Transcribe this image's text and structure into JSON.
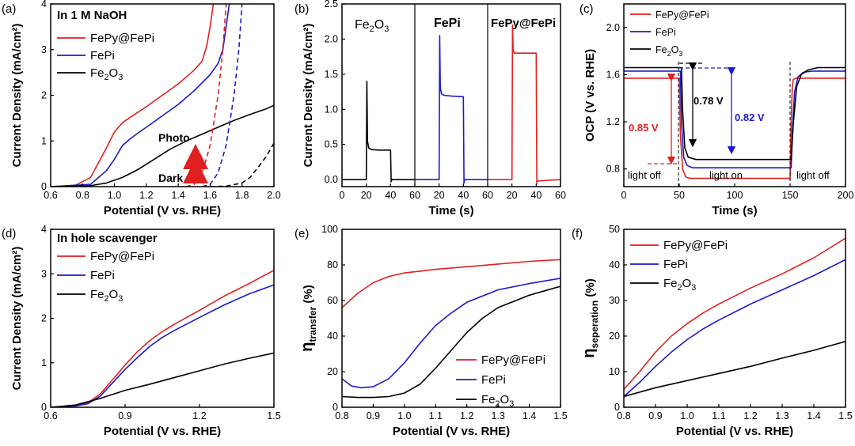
{
  "chart_data": [
    {
      "id": "a",
      "type": "line",
      "panel_label": "(a)",
      "title": "In 1 M NaOH",
      "xlabel": "Potential (V vs. RHE)",
      "ylabel": "Current Density (mA/cm²)",
      "xlim": [
        0.6,
        2.0
      ],
      "ylim": [
        0,
        4
      ],
      "xticks": [
        "0.6",
        "0.8",
        "1.0",
        "1.2",
        "1.4",
        "1.6",
        "1.8",
        "2.0"
      ],
      "yticks": [
        "0",
        "1",
        "2",
        "3",
        "4"
      ],
      "legend": [
        "FePy@FePi",
        "FePi",
        "Fe₂O₃"
      ],
      "annotations": [
        "Photo",
        "Dark"
      ],
      "series": [
        {
          "name": "FePy@FePi",
          "color": "#e02020",
          "dash": false,
          "x": [
            0.6,
            0.75,
            0.85,
            0.95,
            1.0,
            1.05,
            1.1,
            1.2,
            1.3,
            1.4,
            1.5,
            1.55,
            1.58,
            1.6,
            1.62
          ],
          "y": [
            0,
            0.02,
            0.2,
            0.85,
            1.2,
            1.4,
            1.52,
            1.75,
            2.0,
            2.25,
            2.55,
            2.75,
            3.1,
            3.5,
            4.0
          ]
        },
        {
          "name": "FePi",
          "color": "#1a1acc",
          "dash": false,
          "x": [
            0.6,
            0.85,
            0.95,
            1.0,
            1.05,
            1.1,
            1.15,
            1.2,
            1.3,
            1.4,
            1.5,
            1.6,
            1.65,
            1.68,
            1.7,
            1.72
          ],
          "y": [
            0,
            0.05,
            0.35,
            0.6,
            0.9,
            1.05,
            1.18,
            1.3,
            1.55,
            1.8,
            2.1,
            2.45,
            2.7,
            3.0,
            3.5,
            4.0
          ]
        },
        {
          "name": "Fe₂O₃",
          "color": "#000000",
          "dash": false,
          "x": [
            0.6,
            0.85,
            0.95,
            1.05,
            1.15,
            1.25,
            1.35,
            1.45,
            1.55,
            1.65,
            1.75,
            1.85,
            1.95,
            2.0
          ],
          "y": [
            0,
            0.02,
            0.08,
            0.2,
            0.38,
            0.6,
            0.82,
            1.0,
            1.15,
            1.3,
            1.45,
            1.58,
            1.7,
            1.78
          ]
        },
        {
          "name": "FePy@FePi dark",
          "color": "#e02020",
          "dash": true,
          "x": [
            1.45,
            1.5,
            1.55,
            1.6,
            1.65,
            1.68,
            1.7
          ],
          "y": [
            0,
            0.05,
            0.3,
            0.9,
            2.0,
            3.0,
            4.0
          ]
        },
        {
          "name": "FePi dark",
          "color": "#1a1acc",
          "dash": true,
          "x": [
            1.55,
            1.6,
            1.65,
            1.7,
            1.75,
            1.78,
            1.8
          ],
          "y": [
            0,
            0.05,
            0.3,
            0.9,
            2.0,
            3.0,
            4.0
          ]
        },
        {
          "name": "Fe₂O₃ dark",
          "color": "#000000",
          "dash": true,
          "x": [
            1.6,
            1.7,
            1.8,
            1.85,
            1.9,
            1.95,
            2.0
          ],
          "y": [
            0,
            0.01,
            0.08,
            0.2,
            0.42,
            0.65,
            0.95
          ]
        }
      ]
    },
    {
      "id": "b",
      "type": "line",
      "panel_label": "(b)",
      "xlabel": "Time (s)",
      "ylabel": "Current Density (mA/cm²)",
      "xlim": [
        0,
        180
      ],
      "ylim": [
        -0.1,
        2.5
      ],
      "xticks": [
        "0",
        "20",
        "40",
        "60",
        "20",
        "40",
        "60",
        "20",
        "40",
        "60"
      ],
      "xtick_values": [
        0,
        20,
        40,
        60,
        80,
        100,
        120,
        140,
        160,
        180
      ],
      "yticks": [
        "0.0",
        "0.5",
        "1.0",
        "1.5",
        "2.0",
        "2.5"
      ],
      "ytick_values": [
        0,
        0.5,
        1.0,
        1.5,
        2.0,
        2.5
      ],
      "sections": [
        {
          "label": "Fe₂O₃",
          "color": "#000000"
        },
        {
          "label": "FePi",
          "color": "#1a1acc"
        },
        {
          "label": "FePy@FePi",
          "color": "#e02020"
        }
      ],
      "series": [
        {
          "name": "Fe₂O₃",
          "color": "#000000",
          "x": [
            0,
            20,
            20.5,
            21,
            22,
            24,
            30,
            40,
            40.5,
            41,
            60
          ],
          "y": [
            0,
            0,
            1.4,
            0.55,
            0.45,
            0.43,
            0.42,
            0.42,
            -0.03,
            0,
            0
          ]
        },
        {
          "name": "FePi",
          "color": "#1a1acc",
          "x": [
            60,
            80,
            80.5,
            81,
            82,
            84,
            90,
            100,
            100.5,
            101,
            120
          ],
          "y": [
            0,
            0,
            2.05,
            1.3,
            1.22,
            1.2,
            1.19,
            1.18,
            -0.05,
            0,
            0
          ]
        },
        {
          "name": "FePy@FePi",
          "color": "#e02020",
          "x": [
            120,
            140,
            140.5,
            141,
            142,
            144,
            150,
            160,
            160.5,
            161,
            180
          ],
          "y": [
            0,
            0,
            2.2,
            1.85,
            1.8,
            1.8,
            1.8,
            1.8,
            -0.05,
            -0.02,
            0
          ]
        }
      ]
    },
    {
      "id": "c",
      "type": "line",
      "panel_label": "(c)",
      "xlabel": "Time (s)",
      "ylabel": "OCP (V vs. RHE)",
      "xlim": [
        0,
        200
      ],
      "ylim": [
        0.65,
        2.2
      ],
      "xticks": [
        "0",
        "50",
        "100",
        "150",
        "200"
      ],
      "xtick_values": [
        0,
        50,
        100,
        150,
        200
      ],
      "yticks": [
        "0.8",
        "1.2",
        "1.6",
        "2.0"
      ],
      "ytick_values": [
        0.8,
        1.2,
        1.6,
        2.0
      ],
      "legend": [
        "FePy@FePi",
        "FePi",
        "Fe₂O₃"
      ],
      "annotations": [
        {
          "text": "0.85 V",
          "color": "#e02020"
        },
        {
          "text": "0.78 V",
          "color": "#000000"
        },
        {
          "text": "0.82 V",
          "color": "#1a1acc"
        },
        {
          "text": "light off",
          "color": "#000000"
        },
        {
          "text": "light on",
          "color": "#000000"
        },
        {
          "text": "light off",
          "color": "#000000"
        }
      ],
      "series": [
        {
          "name": "FePy@FePi",
          "color": "#e02020",
          "x": [
            0,
            50,
            51,
            53,
            56,
            60,
            150,
            151,
            152,
            153,
            155,
            160,
            200
          ],
          "y": [
            1.57,
            1.57,
            1.1,
            0.8,
            0.73,
            0.72,
            0.72,
            1.2,
            1.5,
            1.56,
            1.57,
            1.57,
            1.57
          ]
        },
        {
          "name": "FePi",
          "color": "#1a1acc",
          "x": [
            0,
            51,
            52,
            54,
            57,
            62,
            151,
            152,
            154,
            157,
            162,
            170,
            200
          ],
          "y": [
            1.63,
            1.63,
            1.2,
            0.9,
            0.83,
            0.81,
            0.81,
            1.1,
            1.45,
            1.58,
            1.62,
            1.63,
            1.63
          ]
        },
        {
          "name": "Fe₂O₃",
          "color": "#000000",
          "x": [
            0,
            52,
            53,
            55,
            58,
            65,
            151,
            153,
            156,
            160,
            166,
            175,
            200
          ],
          "y": [
            1.66,
            1.66,
            1.3,
            0.98,
            0.9,
            0.88,
            0.88,
            1.2,
            1.5,
            1.6,
            1.64,
            1.66,
            1.66
          ]
        }
      ]
    },
    {
      "id": "d",
      "type": "line",
      "panel_label": "(d)",
      "title": "In hole scavenger",
      "xlabel": "Potential (V vs. RHE)",
      "ylabel": "Current Density (mA/cm²)",
      "xlim": [
        0.6,
        1.5
      ],
      "ylim": [
        0,
        4
      ],
      "xticks": [
        "0.6",
        "0.9",
        "1.2",
        "1.5"
      ],
      "xtick_values": [
        0.6,
        0.9,
        1.2,
        1.5
      ],
      "yticks": [
        "0",
        "1",
        "2",
        "3",
        "4"
      ],
      "legend": [
        "FePy@FePi",
        "FePi",
        "Fe₂O₃"
      ],
      "series": [
        {
          "name": "FePy@FePi",
          "color": "#e02020",
          "x": [
            0.6,
            0.7,
            0.75,
            0.8,
            0.85,
            0.9,
            0.95,
            1.0,
            1.05,
            1.1,
            1.2,
            1.3,
            1.4,
            1.5
          ],
          "y": [
            0,
            0.03,
            0.1,
            0.3,
            0.62,
            0.95,
            1.25,
            1.5,
            1.7,
            1.87,
            2.18,
            2.5,
            2.78,
            3.08
          ]
        },
        {
          "name": "FePi",
          "color": "#1a1acc",
          "x": [
            0.6,
            0.7,
            0.75,
            0.8,
            0.85,
            0.9,
            0.95,
            1.0,
            1.05,
            1.1,
            1.2,
            1.3,
            1.4,
            1.5
          ],
          "y": [
            0,
            0.03,
            0.08,
            0.25,
            0.55,
            0.85,
            1.12,
            1.37,
            1.57,
            1.73,
            2.02,
            2.3,
            2.55,
            2.75
          ]
        },
        {
          "name": "Fe₂O₃",
          "color": "#000000",
          "x": [
            0.6,
            0.7,
            0.8,
            0.9,
            1.0,
            1.1,
            1.2,
            1.3,
            1.4,
            1.5
          ],
          "y": [
            0,
            0.05,
            0.2,
            0.38,
            0.52,
            0.67,
            0.82,
            0.97,
            1.1,
            1.22
          ]
        }
      ]
    },
    {
      "id": "e",
      "type": "line",
      "panel_label": "(e)",
      "xlabel": "Potential (V vs. RHE)",
      "ylabel": "ηtransfer (%)",
      "ylabel_main": "η",
      "ylabel_sub": "transfer",
      "ylabel_unit": " (%)",
      "xlim": [
        0.8,
        1.5
      ],
      "ylim": [
        0,
        100
      ],
      "xticks": [
        "0.8",
        "0.9",
        "1.0",
        "1.1",
        "1.2",
        "1.3",
        "1.4",
        "1.5"
      ],
      "xtick_values": [
        0.8,
        0.9,
        1.0,
        1.1,
        1.2,
        1.3,
        1.4,
        1.5
      ],
      "yticks": [
        "0",
        "20",
        "40",
        "60",
        "80",
        "100"
      ],
      "ytick_values": [
        0,
        20,
        40,
        60,
        80,
        100
      ],
      "legend": [
        "FePy@FePi",
        "FePi",
        "Fe₂O₃"
      ],
      "series": [
        {
          "name": "FePy@FePi",
          "color": "#e02020",
          "x": [
            0.8,
            0.85,
            0.9,
            0.95,
            1.0,
            1.05,
            1.1,
            1.2,
            1.3,
            1.4,
            1.5
          ],
          "y": [
            56,
            64,
            70,
            73.5,
            75.5,
            76.5,
            77.5,
            79,
            80.5,
            82,
            83
          ]
        },
        {
          "name": "FePi",
          "color": "#1a1acc",
          "x": [
            0.8,
            0.83,
            0.86,
            0.9,
            0.95,
            1.0,
            1.05,
            1.1,
            1.15,
            1.2,
            1.3,
            1.4,
            1.5
          ],
          "y": [
            16,
            12,
            11,
            11.5,
            16,
            25,
            36,
            46,
            53,
            59,
            66,
            69.5,
            72.5
          ]
        },
        {
          "name": "Fe₂O₃",
          "color": "#000000",
          "x": [
            0.8,
            0.85,
            0.9,
            0.95,
            1.0,
            1.05,
            1.1,
            1.15,
            1.2,
            1.25,
            1.3,
            1.4,
            1.5
          ],
          "y": [
            6,
            5.5,
            5.5,
            6,
            8,
            13,
            22,
            32,
            42,
            50,
            56,
            63,
            68
          ]
        }
      ]
    },
    {
      "id": "f",
      "type": "line",
      "panel_label": "(f)",
      "xlabel": "Potential (V vs. RHE)",
      "ylabel": "ηseperation (%)",
      "ylabel_main": "η",
      "ylabel_sub": "seperation",
      "ylabel_unit": " (%)",
      "xlim": [
        0.8,
        1.5
      ],
      "ylim": [
        0,
        50
      ],
      "xticks": [
        "0.8",
        "0.9",
        "1.0",
        "1.1",
        "1.2",
        "1.3",
        "1.4",
        "1.5"
      ],
      "xtick_values": [
        0.8,
        0.9,
        1.0,
        1.1,
        1.2,
        1.3,
        1.4,
        1.5
      ],
      "yticks": [
        "0",
        "10",
        "20",
        "30",
        "40",
        "50"
      ],
      "ytick_values": [
        0,
        10,
        20,
        30,
        40,
        50
      ],
      "legend": [
        "FePy@FePi",
        "FePi",
        "Fe₂O₃"
      ],
      "series": [
        {
          "name": "FePy@FePi",
          "color": "#e02020",
          "x": [
            0.8,
            0.85,
            0.9,
            0.95,
            1.0,
            1.05,
            1.1,
            1.2,
            1.3,
            1.4,
            1.5
          ],
          "y": [
            5,
            10,
            15.5,
            20,
            23.5,
            26.5,
            29,
            33.5,
            37.5,
            42,
            47.5
          ]
        },
        {
          "name": "FePi",
          "color": "#1a1acc",
          "x": [
            0.8,
            0.85,
            0.9,
            0.95,
            1.0,
            1.05,
            1.1,
            1.2,
            1.3,
            1.4,
            1.5
          ],
          "y": [
            3,
            7,
            11.5,
            15.5,
            19,
            22,
            24.5,
            29,
            33,
            37,
            41.5
          ]
        },
        {
          "name": "Fe₂O₃",
          "color": "#000000",
          "x": [
            0.8,
            0.9,
            1.0,
            1.1,
            1.2,
            1.3,
            1.4,
            1.5
          ],
          "y": [
            3,
            5.5,
            7.5,
            9.5,
            11.5,
            13.8,
            16,
            18.5
          ]
        }
      ]
    }
  ]
}
